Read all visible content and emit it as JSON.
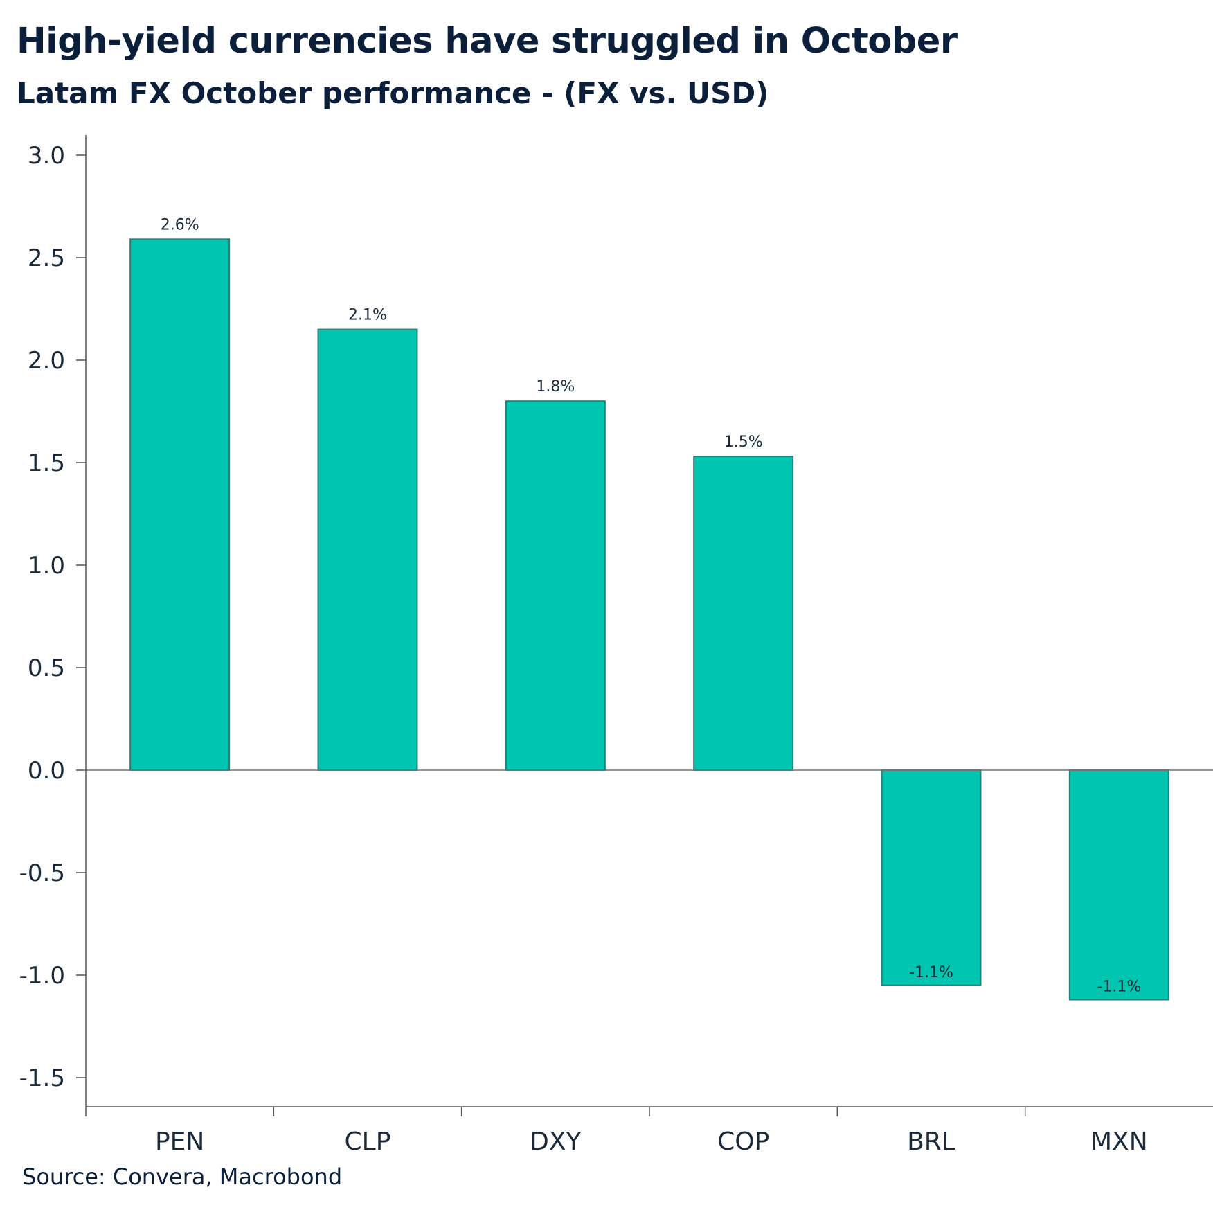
{
  "chart_data": {
    "type": "bar",
    "title": "High-yield currencies have struggled in October",
    "subtitle": "Latam FX October performance - (FX vs. USD)",
    "categories": [
      "PEN",
      "CLP",
      "DXY",
      "COP",
      "BRL",
      "MXN"
    ],
    "values": [
      2.59,
      2.15,
      1.8,
      1.53,
      -1.05,
      -1.12
    ],
    "data_labels": [
      "2.6%",
      "2.1%",
      "1.8%",
      "1.5%",
      "-1.1%",
      "-1.1%"
    ],
    "ylim": [
      -1.6,
      3.1
    ],
    "yticks": [
      3.0,
      2.5,
      2.0,
      1.5,
      1.0,
      0.5,
      0.0,
      -0.5,
      -1.0,
      -1.5
    ],
    "ytick_labels": [
      "3.0",
      "2.5",
      "2.0",
      "1.5",
      "1.0",
      "0.5",
      "0.0",
      "-0.5",
      "-1.0",
      "-1.5"
    ],
    "xlabel": "",
    "ylabel": "",
    "grid": false,
    "bar_color": "#00c5b0",
    "bar_edge_color": "#2a7f79",
    "source": "Source: Convera, Macrobond"
  }
}
